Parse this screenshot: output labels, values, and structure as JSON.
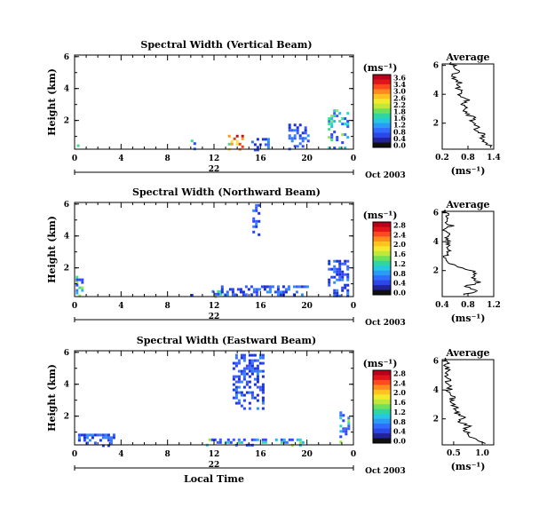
{
  "chart_data": [
    {
      "type": "heatmap",
      "title": "Spectral Width (Vertical Beam)",
      "ylabel": "Height (km)",
      "x_ticks": [
        "0",
        "4",
        "8",
        "12",
        "16",
        "20",
        "0"
      ],
      "xlim": [
        0,
        24
      ],
      "y_ticks": [
        "6",
        "4",
        "2"
      ],
      "ylim": [
        0.2,
        6.1
      ],
      "date_day": "22",
      "date_month": "Oct 2003",
      "colorbar": {
        "unit": "(ms⁻¹)",
        "ticks": [
          "3.6",
          "3.4",
          "3.0",
          "2.6",
          "2.2",
          "1.8",
          "1.6",
          "1.2",
          "0.8",
          "0.4",
          "0.0"
        ]
      },
      "patches": [
        {
          "x": [
            0.2,
            0.8
          ],
          "y": [
            0.2,
            0.5
          ],
          "level": "med"
        },
        {
          "x": [
            10.0,
            10.3
          ],
          "y": [
            0.2,
            0.8
          ],
          "level": "med"
        },
        {
          "x": [
            13.2,
            14.4
          ],
          "y": [
            0.2,
            1.1
          ],
          "level": "high"
        },
        {
          "x": [
            15.2,
            16.8
          ],
          "y": [
            0.2,
            0.9
          ],
          "level": "low"
        },
        {
          "x": [
            18.4,
            20.2
          ],
          "y": [
            0.2,
            1.8
          ],
          "level": "low"
        },
        {
          "x": [
            21.8,
            23.6
          ],
          "y": [
            0.2,
            2.7
          ],
          "level": "med"
        }
      ],
      "average_profile": {
        "title": "Average",
        "xlabel": "(ms⁻¹)",
        "x_ticks": [
          "0.2",
          "0.8",
          "1.4"
        ],
        "xlim": [
          0.2,
          1.4
        ],
        "y_ticks": [
          "6",
          "4",
          "2"
        ],
        "ylim": [
          0.2,
          6.1
        ],
        "heights": [
          0.3,
          0.6,
          0.9,
          1.2,
          1.5,
          1.8,
          2.1,
          2.4,
          2.7,
          3.0,
          3.3,
          3.6,
          3.9,
          4.2,
          4.5,
          4.8,
          5.1,
          5.4,
          5.7,
          6.0
        ],
        "values": [
          1.35,
          1.25,
          1.1,
          1.2,
          1.0,
          1.05,
          0.9,
          0.95,
          0.7,
          0.75,
          0.65,
          0.8,
          0.6,
          0.7,
          0.55,
          0.6,
          0.45,
          0.5,
          0.6,
          0.45
        ]
      }
    },
    {
      "type": "heatmap",
      "title": "Spectral Width (Northward Beam)",
      "ylabel": "Height (km)",
      "x_ticks": [
        "0",
        "4",
        "8",
        "12",
        "16",
        "20",
        "0"
      ],
      "xlim": [
        0,
        24
      ],
      "y_ticks": [
        "6",
        "4",
        "2"
      ],
      "ylim": [
        0.2,
        6.1
      ],
      "date_day": "22",
      "date_month": "Oct 2003",
      "colorbar": {
        "unit": "(ms⁻¹)",
        "ticks": [
          "2.8",
          "2.4",
          "2.0",
          "1.6",
          "1.2",
          "0.8",
          "0.4",
          "0.0"
        ]
      },
      "patches": [
        {
          "x": [
            0.1,
            0.6
          ],
          "y": [
            0.2,
            1.5
          ],
          "level": "med"
        },
        {
          "x": [
            10.0,
            10.2
          ],
          "y": [
            0.2,
            0.7
          ],
          "level": "low"
        },
        {
          "x": [
            11.8,
            12.6
          ],
          "y": [
            0.2,
            0.6
          ],
          "level": "med"
        },
        {
          "x": [
            12.6,
            20.0
          ],
          "y": [
            0.3,
            0.9
          ],
          "level": "low"
        },
        {
          "x": [
            15.3,
            15.9
          ],
          "y": [
            3.6,
            6.0
          ],
          "level": "low"
        },
        {
          "x": [
            21.8,
            23.5
          ],
          "y": [
            0.2,
            2.5
          ],
          "level": "low"
        }
      ],
      "average_profile": {
        "title": "Average",
        "xlabel": "(ms⁻¹)",
        "x_ticks": [
          "0.4",
          "0.8",
          "1.2"
        ],
        "xlim": [
          0.4,
          1.2
        ],
        "y_ticks": [
          "6",
          "4",
          "2"
        ],
        "ylim": [
          0.2,
          6.1
        ],
        "heights": [
          0.3,
          0.6,
          0.9,
          1.2,
          1.5,
          1.8,
          2.1,
          2.4,
          2.7,
          3.0,
          3.3,
          3.6,
          3.9,
          4.2,
          4.5,
          4.8,
          5.1,
          5.4,
          5.7,
          6.0
        ],
        "values": [
          0.7,
          0.95,
          0.75,
          1.0,
          0.85,
          0.95,
          0.8,
          0.55,
          0.5,
          0.45,
          0.5,
          0.45,
          0.5,
          0.45,
          0.5,
          0.45,
          0.55,
          0.45,
          0.5,
          0.45
        ]
      }
    },
    {
      "type": "heatmap",
      "title": "Spectral Width (Eastward Beam)",
      "ylabel": "Height (km)",
      "xlabel": "Local Time",
      "x_ticks": [
        "0",
        "4",
        "8",
        "12",
        "16",
        "20",
        "0"
      ],
      "xlim": [
        0,
        24
      ],
      "y_ticks": [
        "6",
        "4",
        "2"
      ],
      "ylim": [
        0.2,
        6.1
      ],
      "date_day": "22",
      "date_month": "Oct 2003",
      "colorbar": {
        "unit": "(ms⁻¹)",
        "ticks": [
          "2.8",
          "2.4",
          "2.0",
          "1.6",
          "1.2",
          "0.8",
          "0.4",
          "0.0"
        ]
      },
      "patches": [
        {
          "x": [
            0.3,
            3.5
          ],
          "y": [
            0.2,
            0.9
          ],
          "level": "low"
        },
        {
          "x": [
            10.0,
            10.3
          ],
          "y": [
            0.2,
            0.6
          ],
          "level": "low"
        },
        {
          "x": [
            11.3,
            20.0
          ],
          "y": [
            0.2,
            0.6
          ],
          "level": "med"
        },
        {
          "x": [
            13.6,
            16.3
          ],
          "y": [
            2.4,
            5.9
          ],
          "level": "low"
        },
        {
          "x": [
            22.8,
            23.7
          ],
          "y": [
            0.3,
            2.3
          ],
          "level": "med"
        }
      ],
      "average_profile": {
        "title": "Average",
        "xlabel": "(ms⁻¹)",
        "x_ticks": [
          "0.5",
          "1.0"
        ],
        "xlim": [
          0.3,
          1.2
        ],
        "y_ticks": [
          "6",
          "4",
          "2"
        ],
        "ylim": [
          0.2,
          6.1
        ],
        "heights": [
          0.3,
          0.6,
          0.9,
          1.2,
          1.5,
          1.8,
          2.1,
          2.4,
          2.7,
          3.0,
          3.3,
          3.6,
          3.9,
          4.2,
          4.5,
          4.8,
          5.1,
          5.4,
          5.7,
          6.0
        ],
        "values": [
          1.1,
          0.85,
          0.8,
          0.7,
          0.75,
          0.6,
          0.7,
          0.55,
          0.55,
          0.5,
          0.45,
          0.5,
          0.4,
          0.45,
          0.4,
          0.42,
          0.38,
          0.4,
          0.38,
          0.36
        ]
      }
    }
  ]
}
